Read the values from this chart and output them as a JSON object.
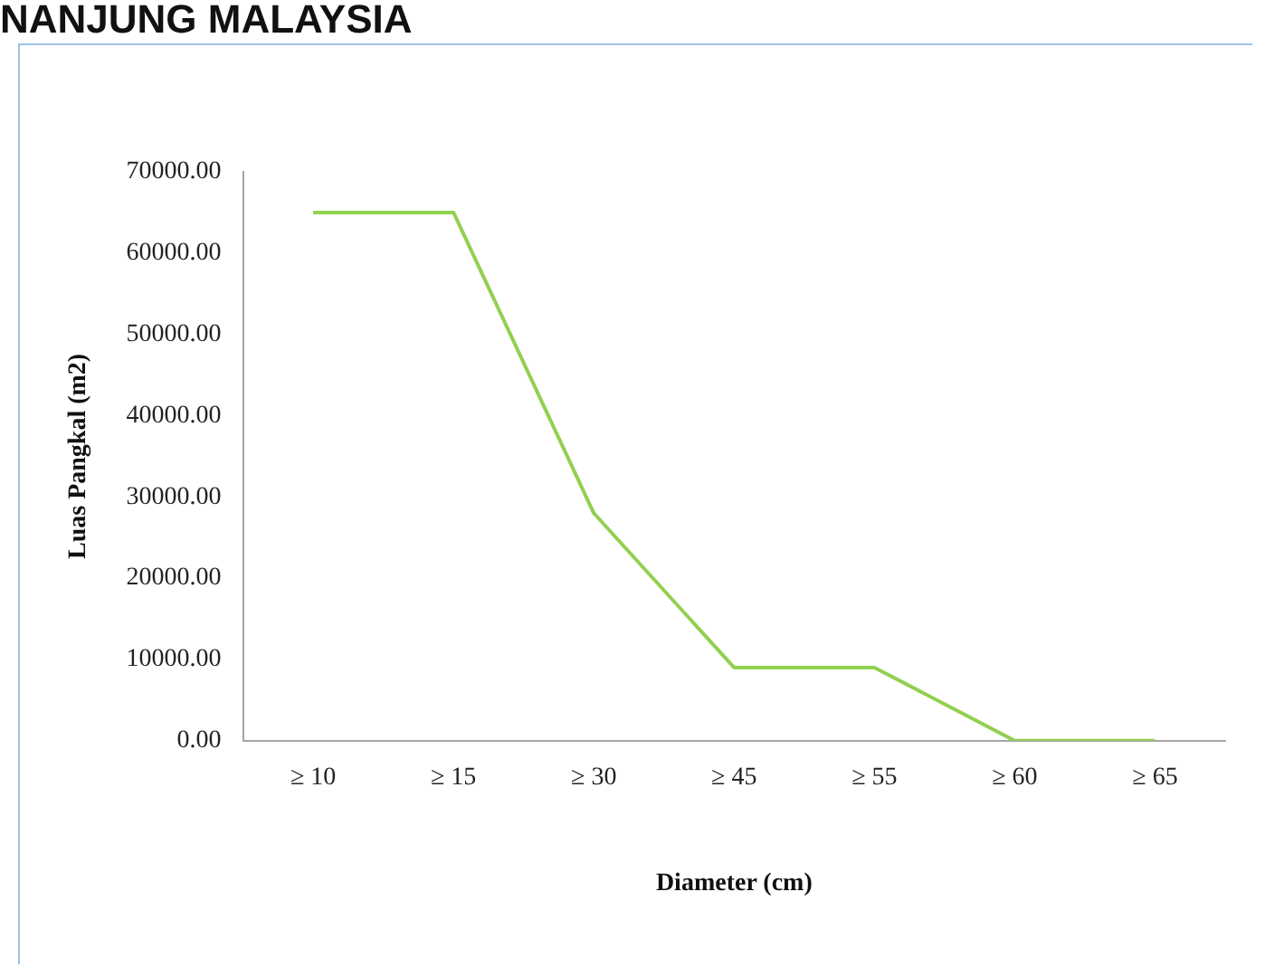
{
  "chart_data": {
    "type": "line",
    "title": "NANJUNG MALAYSIA",
    "xlabel": "Diameter (cm)",
    "ylabel": "Luas Pangkal (m2)",
    "categories": [
      "≥ 10",
      "≥ 15",
      "≥ 30",
      "≥ 45",
      "≥ 55",
      "≥ 60",
      "≥ 65"
    ],
    "series": [
      {
        "color": "#92d050",
        "values": [
          65000,
          65000,
          28000,
          9000,
          9000,
          0,
          0
        ]
      }
    ],
    "ylim": [
      0,
      70000
    ],
    "yticks": [
      {
        "value": 0,
        "label": "0.00"
      },
      {
        "value": 10000,
        "label": "10000.00"
      },
      {
        "value": 20000,
        "label": "20000.00"
      },
      {
        "value": 30000,
        "label": "30000.00"
      },
      {
        "value": 40000,
        "label": "40000.00"
      },
      {
        "value": 50000,
        "label": "50000.00"
      },
      {
        "value": 60000,
        "label": "60000.00"
      },
      {
        "value": 70000,
        "label": "70000.00"
      }
    ],
    "grid": false,
    "legend": false,
    "marker": "none"
  }
}
